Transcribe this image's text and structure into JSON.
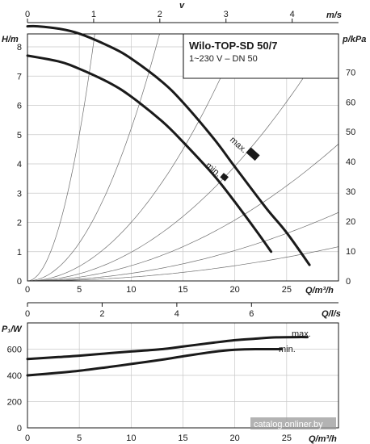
{
  "legend": {
    "title": "Wilo-TOP-SD 50/7",
    "subtitle": "1~230 V – DN 50"
  },
  "watermark": "catalog.onliner.by",
  "chart_data": [
    {
      "type": "line",
      "name": "pump-head-curves",
      "xlabel": "Q/m³/h",
      "ylabel": "H/m",
      "y2label": "p/kPa",
      "xlim": [
        0,
        30
      ],
      "ylim": [
        0,
        8
      ],
      "xticks": [
        0,
        5,
        10,
        15,
        20,
        25
      ],
      "yticks": [
        0,
        1,
        2,
        3,
        4,
        5,
        6,
        7,
        8
      ],
      "y2ticks": [
        0,
        10,
        20,
        30,
        40,
        50,
        60,
        70
      ],
      "top_axes": [
        {
          "label": "v",
          "unit": "m/s",
          "ticks": [
            0,
            1,
            2,
            3,
            4
          ],
          "max": 4.7
        },
        {
          "label": "Q/l/s",
          "ticks": [
            0,
            2,
            4,
            6
          ],
          "max": 8.33
        }
      ],
      "series": [
        {
          "name": "max.",
          "x": [
            0,
            1,
            3,
            5,
            8,
            10,
            13,
            15,
            18,
            20,
            23,
            25,
            27.2
          ],
          "y": [
            8.7,
            8.7,
            8.62,
            8.45,
            8.0,
            7.6,
            6.8,
            6.1,
            4.85,
            3.9,
            2.5,
            1.65,
            0.55
          ]
        },
        {
          "name": "min.",
          "x": [
            0,
            3,
            5,
            8,
            10,
            13,
            15,
            18,
            20,
            22,
            23.5
          ],
          "y": [
            7.7,
            7.5,
            7.25,
            6.75,
            6.3,
            5.45,
            4.75,
            3.6,
            2.7,
            1.75,
            1.0
          ]
        }
      ],
      "system_curves": [
        0.2,
        0.052,
        0.02,
        0.0098,
        0.0052,
        0.0026,
        0.0013
      ]
    },
    {
      "type": "line",
      "name": "power-curves",
      "xlabel": "Q/m³/h",
      "ylabel": "P₁/W",
      "xlim": [
        0,
        30
      ],
      "ylim": [
        0,
        800
      ],
      "xticks": [
        0,
        5,
        10,
        15,
        20,
        25
      ],
      "yticks": [
        0,
        200,
        400,
        600
      ],
      "series": [
        {
          "name": "max.",
          "x": [
            0,
            3,
            5,
            8,
            10,
            13,
            15,
            18,
            20,
            22,
            24,
            26,
            27
          ],
          "y": [
            525,
            540,
            550,
            570,
            582,
            600,
            620,
            650,
            668,
            680,
            690,
            692,
            692
          ]
        },
        {
          "name": "min.",
          "x": [
            0,
            3,
            5,
            8,
            10,
            13,
            15,
            18,
            20,
            22,
            24.5
          ],
          "y": [
            400,
            420,
            435,
            465,
            487,
            520,
            545,
            580,
            595,
            600,
            600
          ]
        }
      ]
    }
  ]
}
